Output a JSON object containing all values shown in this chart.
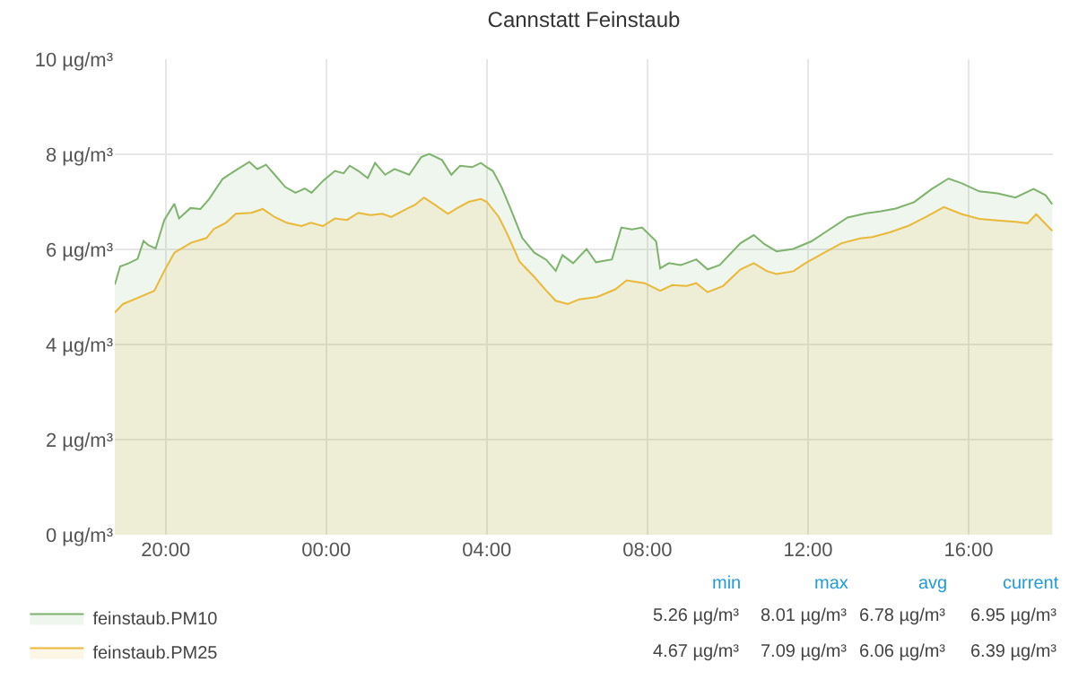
{
  "chart_data": {
    "type": "area",
    "title": "Cannstatt Feinstaub",
    "xlim": [
      "--01-01T18:44",
      "--01-02T18:06"
    ],
    "xticks": [
      {
        "value": "--01-01T20:00",
        "label": "20:00"
      },
      {
        "value": "--01-02T00:00",
        "label": "00:00"
      },
      {
        "value": "--01-02T04:00",
        "label": "04:00"
      },
      {
        "value": "--01-02T08:00",
        "label": "08:00"
      },
      {
        "value": "--01-02T12:00",
        "label": "12:00"
      },
      {
        "value": "--01-02T16:00",
        "label": "16:00"
      }
    ],
    "ylim": [
      0,
      10
    ],
    "yticks": [
      {
        "value": 0,
        "label": "0 µg/m³"
      },
      {
        "value": 2,
        "label": "2 µg/m³"
      },
      {
        "value": 4,
        "label": "4 µg/m³"
      },
      {
        "value": 6,
        "label": "6 µg/m³"
      },
      {
        "value": 8,
        "label": "8 µg/m³"
      },
      {
        "value": 10,
        "label": "10 µg/m³"
      }
    ],
    "grid": true,
    "legend": "bottom left",
    "series": [
      {
        "name": "feinstaub.PM10",
        "color": "#7eb26d",
        "x": [
          "--01-01T18:44",
          "--01-01T18:52",
          "--01-01T19:05",
          "--01-01T19:18",
          "--01-01T19:27",
          "--01-01T19:34",
          "--01-01T19:45",
          "--01-01T19:58",
          "--01-01T20:13",
          "--01-01T20:20",
          "--01-01T20:37",
          "--01-01T20:52",
          "--01-01T21:05",
          "--01-01T21:25",
          "--01-01T21:41",
          "--01-01T22:05",
          "--01-01T22:17",
          "--01-01T22:30",
          "--01-01T22:43",
          "--01-01T22:59",
          "--01-01T23:14",
          "--01-01T23:28",
          "--01-01T23:38",
          "--01-01T23:55",
          "--01-02T00:13",
          "--01-02T00:26",
          "--01-02T00:35",
          "--01-02T00:48",
          "--01-02T01:02",
          "--01-02T01:13",
          "--01-02T01:28",
          "--01-02T01:42",
          "--01-02T02:04",
          "--01-02T02:22",
          "--01-02T02:34",
          "--01-02T02:53",
          "--01-02T03:07",
          "--01-02T03:20",
          "--01-02T03:38",
          "--01-02T03:51",
          "--01-02T04:00",
          "--01-02T04:09",
          "--01-02T04:22",
          "--01-02T04:35",
          "--01-02T04:53",
          "--01-02T05:11",
          "--01-02T05:29",
          "--01-02T05:43",
          "--01-02T05:53",
          "--01-02T06:09",
          "--01-02T06:29",
          "--01-02T06:43",
          "--01-02T07:07",
          "--01-02T07:21",
          "--01-02T07:37",
          "--01-02T07:52",
          "--01-02T08:13",
          "--01-02T08:19",
          "--01-02T08:32",
          "--01-02T08:50",
          "--01-02T09:13",
          "--01-02T09:30",
          "--01-02T09:48",
          "--01-02T10:19",
          "--01-02T10:39",
          "--01-02T10:55",
          "--01-02T11:13",
          "--01-02T11:38",
          "--01-02T12:05",
          "--01-02T12:32",
          "--01-02T12:59",
          "--01-02T13:27",
          "--01-02T13:49",
          "--01-02T14:11",
          "--01-02T14:38",
          "--01-02T15:05",
          "--01-02T15:30",
          "--01-02T15:50",
          "--01-02T16:16",
          "--01-02T16:43",
          "--01-02T17:10",
          "--01-02T17:37",
          "--01-02T17:55",
          "--01-02T18:05"
        ],
        "values": [
          5.26,
          5.64,
          5.71,
          5.8,
          6.18,
          6.09,
          6.02,
          6.62,
          6.96,
          6.65,
          6.87,
          6.85,
          7.06,
          7.48,
          7.63,
          7.84,
          7.69,
          7.78,
          7.57,
          7.31,
          7.19,
          7.28,
          7.19,
          7.44,
          7.65,
          7.6,
          7.76,
          7.65,
          7.5,
          7.82,
          7.57,
          7.69,
          7.57,
          7.94,
          8.01,
          7.88,
          7.57,
          7.76,
          7.73,
          7.82,
          7.73,
          7.65,
          7.31,
          6.87,
          6.24,
          5.93,
          5.78,
          5.55,
          5.88,
          5.71,
          6.01,
          5.73,
          5.79,
          6.46,
          6.42,
          6.46,
          6.17,
          5.6,
          5.71,
          5.67,
          5.79,
          5.58,
          5.67,
          6.13,
          6.3,
          6.11,
          5.96,
          6.01,
          6.17,
          6.42,
          6.67,
          6.76,
          6.8,
          6.86,
          6.99,
          7.27,
          7.49,
          7.39,
          7.22,
          7.18,
          7.09,
          7.27,
          7.14,
          6.95
        ]
      },
      {
        "name": "feinstaub.PM25",
        "color": "#eab839",
        "x": [
          "--01-01T18:44",
          "--01-01T18:56",
          "--01-01T19:18",
          "--01-01T19:43",
          "--01-01T19:58",
          "--01-01T20:13",
          "--01-01T20:38",
          "--01-01T21:01",
          "--01-01T21:12",
          "--01-01T21:30",
          "--01-01T21:45",
          "--01-01T22:08",
          "--01-01T22:25",
          "--01-01T22:43",
          "--01-01T23:01",
          "--01-01T23:23",
          "--01-01T23:37",
          "--01-01T23:55",
          "--01-02T00:13",
          "--01-02T00:31",
          "--01-02T00:48",
          "--01-02T01:06",
          "--01-02T01:24",
          "--01-02T01:37",
          "--01-02T02:00",
          "--01-02T02:13",
          "--01-02T02:26",
          "--01-02T02:40",
          "--01-02T03:02",
          "--01-02T03:16",
          "--01-02T03:33",
          "--01-02T03:51",
          "--01-02T04:00",
          "--01-02T04:18",
          "--01-02T04:31",
          "--01-02T04:49",
          "--01-02T05:11",
          "--01-02T05:29",
          "--01-02T05:43",
          "--01-02T06:01",
          "--01-02T06:18",
          "--01-02T06:45",
          "--01-02T07:12",
          "--01-02T07:29",
          "--01-02T07:56",
          "--01-02T08:19",
          "--01-02T08:37",
          "--01-02T08:59",
          "--01-02T09:13",
          "--01-02T09:30",
          "--01-02T09:53",
          "--01-02T10:19",
          "--01-02T10:39",
          "--01-02T10:59",
          "--01-02T11:13",
          "--01-02T11:38",
          "--01-02T11:56",
          "--01-02T12:23",
          "--01-02T12:50",
          "--01-02T13:18",
          "--01-02T13:36",
          "--01-02T14:02",
          "--01-02T14:29",
          "--01-02T14:56",
          "--01-02T15:23",
          "--01-02T15:50",
          "--01-02T16:16",
          "--01-02T16:43",
          "--01-02T17:10",
          "--01-02T17:28",
          "--01-02T17:41",
          "--01-02T18:05"
        ],
        "values": [
          4.67,
          4.85,
          4.98,
          5.13,
          5.55,
          5.93,
          6.14,
          6.24,
          6.43,
          6.56,
          6.75,
          6.77,
          6.85,
          6.68,
          6.56,
          6.49,
          6.56,
          6.49,
          6.65,
          6.62,
          6.77,
          6.72,
          6.75,
          6.68,
          6.85,
          6.94,
          7.09,
          6.96,
          6.75,
          6.87,
          7.0,
          7.06,
          7.0,
          6.68,
          6.31,
          5.74,
          5.42,
          5.13,
          4.92,
          4.85,
          4.95,
          5.0,
          5.16,
          5.35,
          5.29,
          5.13,
          5.25,
          5.23,
          5.29,
          5.1,
          5.23,
          5.58,
          5.71,
          5.54,
          5.48,
          5.54,
          5.71,
          5.92,
          6.13,
          6.23,
          6.26,
          6.36,
          6.49,
          6.68,
          6.89,
          6.74,
          6.64,
          6.61,
          6.58,
          6.55,
          6.74,
          6.39
        ]
      }
    ],
    "annotations": [
      "min",
      "max",
      "avg",
      "current",
      "5.26 µg/m³",
      "8.01 µg/m³",
      "6.78 µg/m³",
      "6.95 µg/m³",
      "4.67 µg/m³",
      "7.09 µg/m³",
      "6.06 µg/m³",
      "6.39 µg/m³"
    ]
  }
}
